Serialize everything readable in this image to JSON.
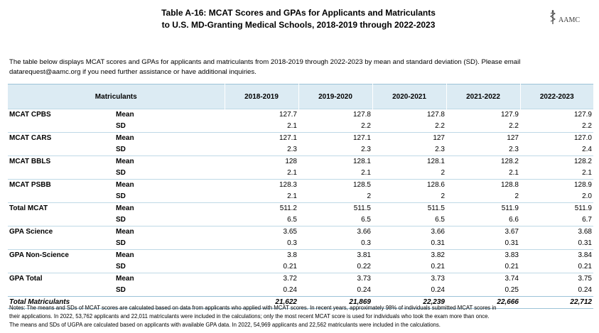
{
  "title": {
    "line1": "Table A-16: MCAT Scores and GPAs for Applicants and Matriculants",
    "line2": "to U.S. MD-Granting Medical Schools, 2018-2019 through 2022-2023"
  },
  "logo": {
    "text": "AAMC",
    "icon": "aamc-logo-icon"
  },
  "intro": {
    "line1": "The table below displays MCAT scores and GPAs for applicants and matriculants from 2018-2019 through 2022-2023 by mean and standard deviation (SD). Please email",
    "line2": "datarequest@aamc.org if you need further assistance or have additional inquiries."
  },
  "table": {
    "header_label": "Matriculants",
    "years": [
      "2018-2019",
      "2019-2020",
      "2020-2021",
      "2021-2022",
      "2022-2023"
    ],
    "groups": [
      {
        "name": "MCAT CPBS",
        "rows": [
          {
            "stat": "Mean",
            "values": [
              "127.7",
              "127.8",
              "127.8",
              "127.9",
              "127.9"
            ]
          },
          {
            "stat": "SD",
            "values": [
              "2.1",
              "2.2",
              "2.2",
              "2.2",
              "2.2"
            ]
          }
        ]
      },
      {
        "name": "MCAT CARS",
        "rows": [
          {
            "stat": "Mean",
            "values": [
              "127.1",
              "127.1",
              "127",
              "127",
              "127.0"
            ]
          },
          {
            "stat": "SD",
            "values": [
              "2.3",
              "2.3",
              "2.3",
              "2.3",
              "2.4"
            ]
          }
        ]
      },
      {
        "name": "MCAT BBLS",
        "rows": [
          {
            "stat": "Mean",
            "values": [
              "128",
              "128.1",
              "128.1",
              "128.2",
              "128.2"
            ]
          },
          {
            "stat": "SD",
            "values": [
              "2.1",
              "2.1",
              "2",
              "2.1",
              "2.1"
            ]
          }
        ]
      },
      {
        "name": "MCAT PSBB",
        "rows": [
          {
            "stat": "Mean",
            "values": [
              "128.3",
              "128.5",
              "128.6",
              "128.8",
              "128.9"
            ]
          },
          {
            "stat": "SD",
            "values": [
              "2.1",
              "2",
              "2",
              "2",
              "2.0"
            ]
          }
        ]
      },
      {
        "name": "Total MCAT",
        "rows": [
          {
            "stat": "Mean",
            "values": [
              "511.2",
              "511.5",
              "511.5",
              "511.9",
              "511.9"
            ]
          },
          {
            "stat": "SD",
            "values": [
              "6.5",
              "6.5",
              "6.5",
              "6.6",
              "6.7"
            ]
          }
        ]
      },
      {
        "name": "GPA Science",
        "rows": [
          {
            "stat": "Mean",
            "values": [
              "3.65",
              "3.66",
              "3.66",
              "3.67",
              "3.68"
            ]
          },
          {
            "stat": "SD",
            "values": [
              "0.3",
              "0.3",
              "0.31",
              "0.31",
              "0.31"
            ]
          }
        ]
      },
      {
        "name": "GPA Non-Science",
        "rows": [
          {
            "stat": "Mean",
            "values": [
              "3.8",
              "3.81",
              "3.82",
              "3.83",
              "3.84"
            ]
          },
          {
            "stat": "SD",
            "values": [
              "0.21",
              "0.22",
              "0.21",
              "0.21",
              "0.21"
            ]
          }
        ]
      },
      {
        "name": "GPA Total",
        "rows": [
          {
            "stat": "Mean",
            "values": [
              "3.72",
              "3.73",
              "3.73",
              "3.74",
              "3.75"
            ]
          },
          {
            "stat": "SD",
            "values": [
              "0.24",
              "0.24",
              "0.24",
              "0.25",
              "0.24"
            ]
          }
        ]
      }
    ],
    "total": {
      "label": "Total Matriculants",
      "values": [
        "21,622",
        "21,869",
        "22,239",
        "22,666",
        "22,712"
      ]
    }
  },
  "notes": {
    "line1": "Notes: The means and SDs of MCAT scores are calculated based on data from applicants who applied with MCAT scores. In recent years, approximately 98% of individuals submitted MCAT scores in",
    "line2": "their applications. In 2022, 53,762 applicants and 22,011 matriculants were included in the calculations; only the most recent MCAT score is used for individuals who took the exam more than once.",
    "line3": "The means and SDs of UGPA are calculated based on applicants with available GPA data. In 2022, 54,969 applicants and 22,562 matriculants were included in the calculations."
  },
  "colors": {
    "header_bg": "#dcebf3",
    "rule": "#9cc3d8"
  }
}
